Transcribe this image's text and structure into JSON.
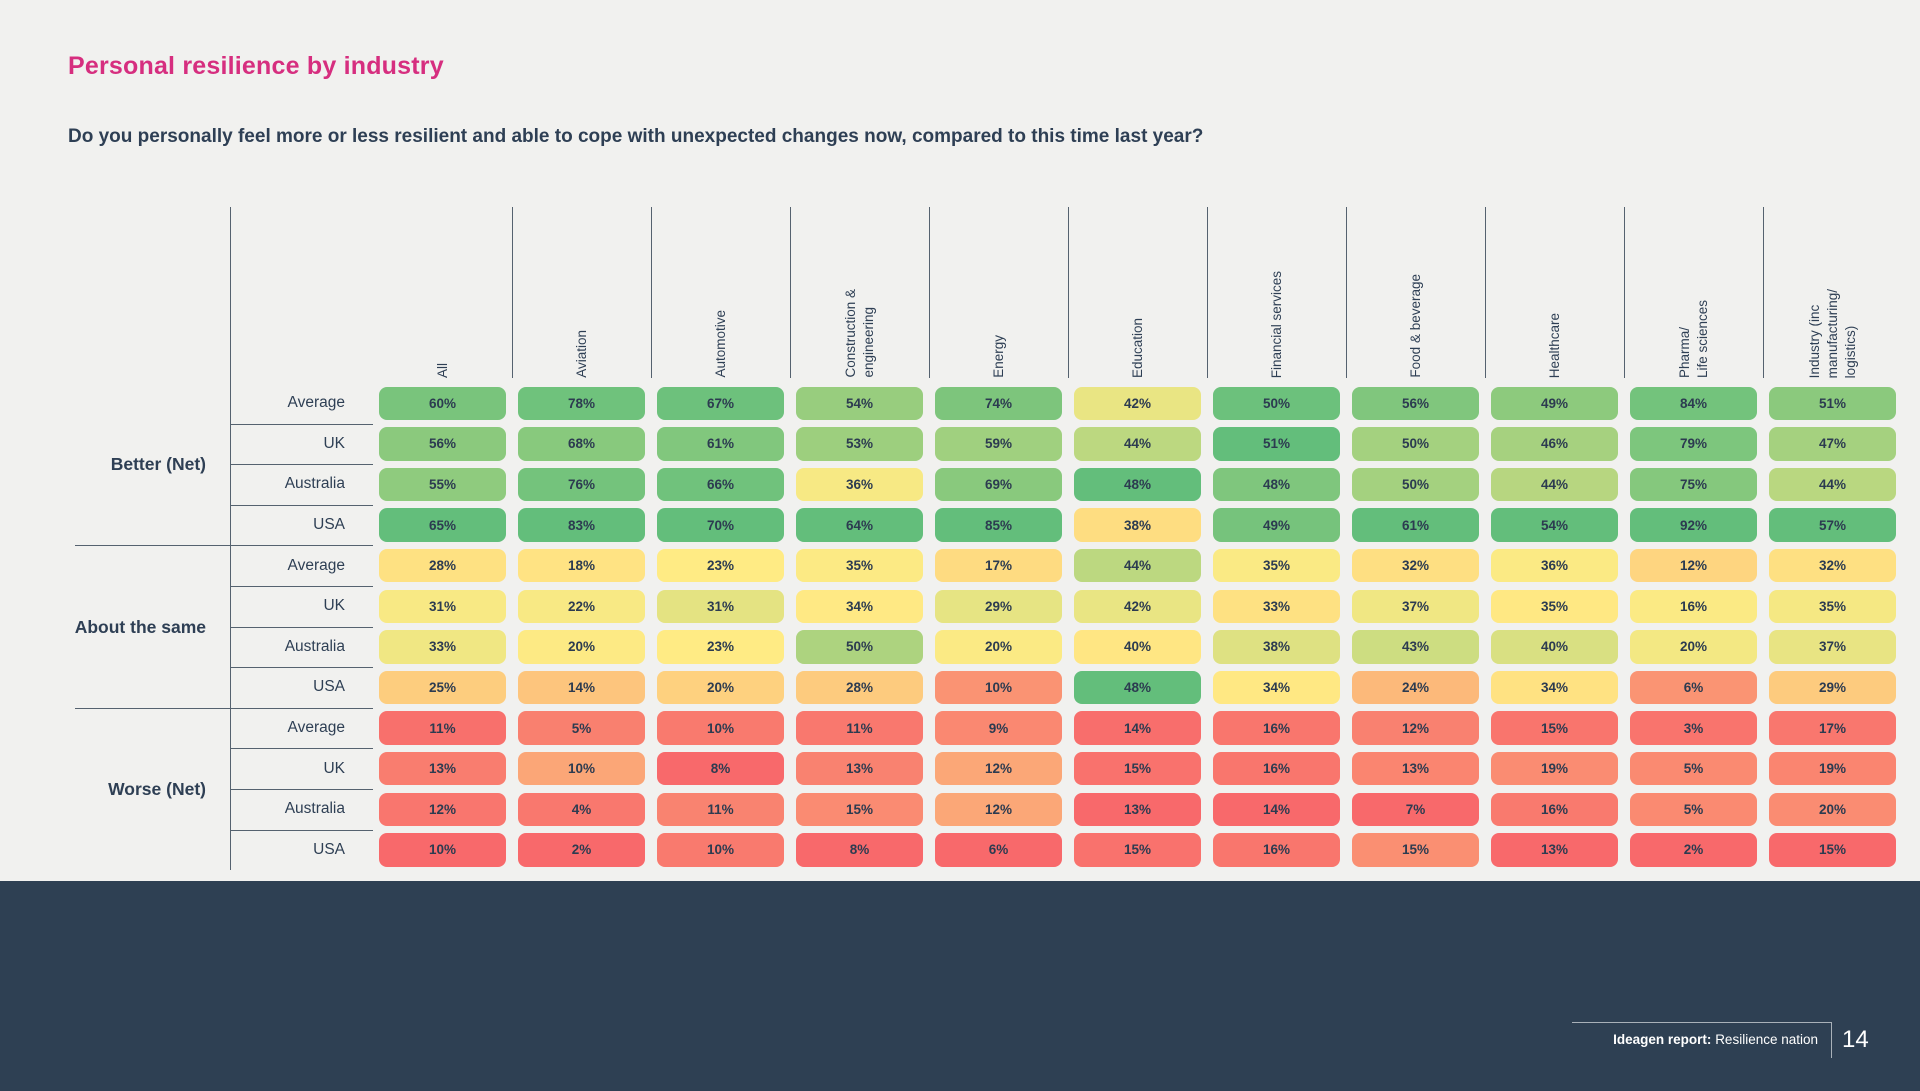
{
  "page": {
    "title": "Personal resilience by industry",
    "question": "Do you personally feel more or less resilient and able to cope with unexpected changes now, compared to this time last year?",
    "footer": {
      "report_label": "Ideagen report:",
      "report_name": "Resilience nation",
      "page_number": "14"
    }
  },
  "colors": {
    "accent_pink": "#d62e7f",
    "text_navy": "#2e3f54",
    "band_navy": "#2e4053",
    "background": "#f1f1ef",
    "line_gray": "#55626f",
    "scale_min_red": "#F8696B",
    "scale_mid_yellow": "#FFEB84",
    "scale_max_green": "#63BE7B"
  },
  "chart_data": {
    "type": "heatmap",
    "title": "Personal resilience by industry",
    "unit": "%",
    "value_range": [
      0,
      100
    ],
    "legend": "none",
    "column_header_style": "rotated vertical, reading bottom-to-top",
    "color_scale": {
      "description": "3-color scale applied per column: min=red, median=yellow, max=green",
      "min": "#F8696B",
      "mid": "#FFEB84",
      "max": "#63BE7B",
      "midpoint": "per-column median"
    },
    "columns": [
      {
        "label": "All",
        "display": "All"
      },
      {
        "label": "Aviation",
        "display": "Aviation"
      },
      {
        "label": "Automotive",
        "display": "Automotive"
      },
      {
        "label": "Construction & engineering",
        "display": "Construction &\nengineering"
      },
      {
        "label": "Energy",
        "display": "Energy"
      },
      {
        "label": "Education",
        "display": "Education"
      },
      {
        "label": "Financial services",
        "display": "Financial services"
      },
      {
        "label": "Food & beverage",
        "display": "Food & beverage"
      },
      {
        "label": "Healthcare",
        "display": "Healthcare"
      },
      {
        "label": "Pharma/ Life sciences",
        "display": "Pharma/\nLife sciences"
      },
      {
        "label": "Industry (inc manufacturing/ logistics)",
        "display": "Industry (inc\nmanufacturing/\nlogistics)"
      }
    ],
    "row_groups": [
      {
        "label": "Better (Net)",
        "rows": [
          {
            "label": "Average",
            "values": [
              60,
              78,
              67,
              54,
              74,
              42,
              50,
              56,
              49,
              84,
              51
            ]
          },
          {
            "label": "UK",
            "values": [
              56,
              68,
              61,
              53,
              59,
              44,
              51,
              50,
              46,
              79,
              47
            ]
          },
          {
            "label": "Australia",
            "values": [
              55,
              76,
              66,
              36,
              69,
              48,
              48,
              50,
              44,
              75,
              44
            ]
          },
          {
            "label": "USA",
            "values": [
              65,
              83,
              70,
              64,
              85,
              38,
              49,
              61,
              54,
              92,
              57
            ]
          }
        ]
      },
      {
        "label": "About the same",
        "rows": [
          {
            "label": "Average",
            "values": [
              28,
              18,
              23,
              35,
              17,
              44,
              35,
              32,
              36,
              12,
              32
            ]
          },
          {
            "label": "UK",
            "values": [
              31,
              22,
              31,
              34,
              29,
              42,
              33,
              37,
              35,
              16,
              35
            ]
          },
          {
            "label": "Australia",
            "values": [
              33,
              20,
              23,
              50,
              20,
              40,
              38,
              43,
              40,
              20,
              37
            ]
          },
          {
            "label": "USA",
            "values": [
              25,
              14,
              20,
              28,
              10,
              48,
              34,
              24,
              34,
              6,
              29
            ]
          }
        ]
      },
      {
        "label": "Worse (Net)",
        "rows": [
          {
            "label": "Average",
            "values": [
              11,
              5,
              10,
              11,
              9,
              14,
              16,
              12,
              15,
              3,
              17
            ]
          },
          {
            "label": "UK",
            "values": [
              13,
              10,
              8,
              13,
              12,
              15,
              16,
              13,
              19,
              5,
              19
            ]
          },
          {
            "label": "Australia",
            "values": [
              12,
              4,
              11,
              15,
              12,
              13,
              14,
              7,
              16,
              5,
              20
            ]
          },
          {
            "label": "USA",
            "values": [
              10,
              2,
              10,
              8,
              6,
              15,
              16,
              15,
              13,
              2,
              15
            ]
          }
        ]
      }
    ]
  }
}
